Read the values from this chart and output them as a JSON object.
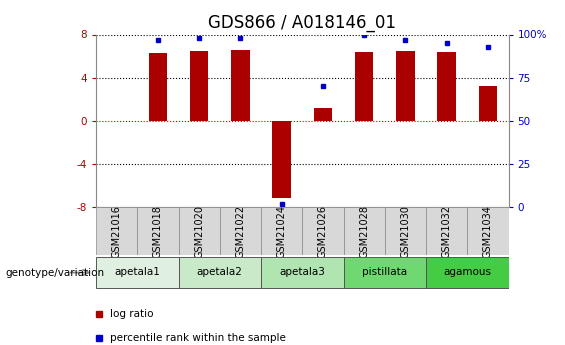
{
  "title": "GDS866 / A018146_01",
  "samples": [
    "GSM21016",
    "GSM21018",
    "GSM21020",
    "GSM21022",
    "GSM21024",
    "GSM21026",
    "GSM21028",
    "GSM21030",
    "GSM21032",
    "GSM21034"
  ],
  "log_ratios": [
    0.0,
    6.3,
    6.5,
    6.6,
    -7.2,
    1.2,
    6.4,
    6.5,
    6.4,
    3.2
  ],
  "percentile_ranks": [
    null,
    97,
    98,
    98,
    2,
    70,
    100,
    97,
    95,
    93
  ],
  "groups": [
    {
      "label": "apetala1",
      "samples": [
        0,
        1
      ],
      "color": "#e0f0e0"
    },
    {
      "label": "apetala2",
      "samples": [
        2,
        3
      ],
      "color": "#c8eac8"
    },
    {
      "label": "apetala3",
      "samples": [
        4,
        5
      ],
      "color": "#b0e4b0"
    },
    {
      "label": "pistillata",
      "samples": [
        6,
        7
      ],
      "color": "#70d870"
    },
    {
      "label": "agamous",
      "samples": [
        8,
        9
      ],
      "color": "#44cc44"
    }
  ],
  "ylim_left": [
    -8,
    8
  ],
  "ylim_right": [
    0,
    100
  ],
  "yticks_left": [
    -8,
    -4,
    0,
    4,
    8
  ],
  "yticks_right": [
    0,
    25,
    50,
    75,
    100
  ],
  "bar_color": "#aa0000",
  "dot_color": "#0000cc",
  "background_color": "#ffffff",
  "grid_color": "#000000",
  "zero_line_color": "#cc0000",
  "sample_row_color": "#d8d8d8",
  "title_fontsize": 12,
  "tick_fontsize": 7.5,
  "label_fontsize": 8
}
